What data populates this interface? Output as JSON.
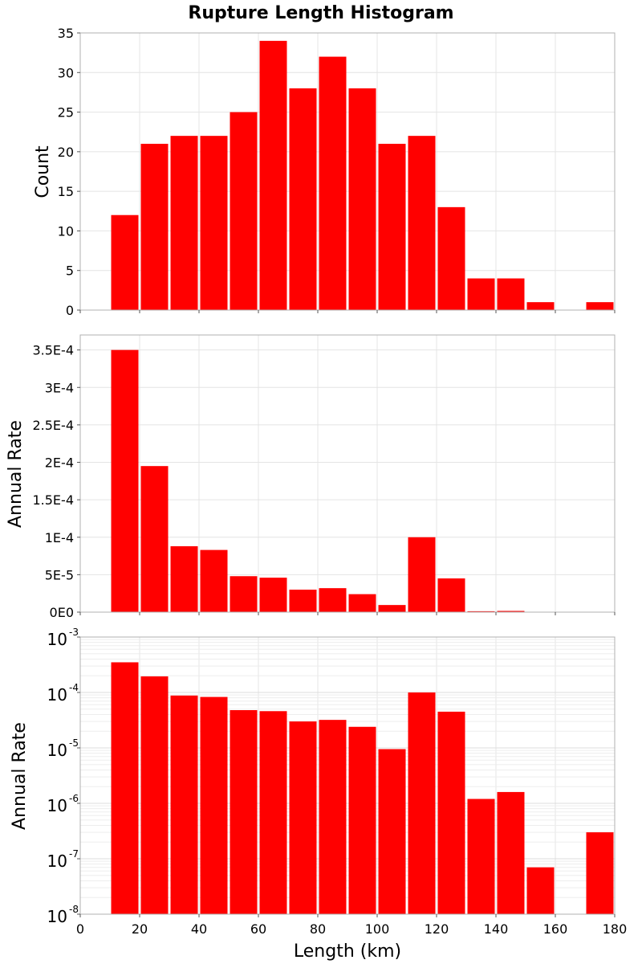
{
  "chart_data": {
    "type": "bar",
    "title": "Rupture Length Histogram",
    "xlabel": "Length (km)",
    "xlim": [
      0,
      180
    ],
    "x_ticks": [
      "0",
      "20",
      "40",
      "60",
      "80",
      "100",
      "120",
      "140",
      "160",
      "180"
    ],
    "bin_centers": [
      15,
      25,
      35,
      45,
      55,
      65,
      75,
      85,
      95,
      105,
      115,
      125,
      135,
      145,
      155,
      165,
      175
    ],
    "bar_color": "#ff0000",
    "grid": true,
    "panels": [
      {
        "ylabel": "Count",
        "scale": "linear",
        "ylim": [
          0,
          35
        ],
        "y_ticks": [
          0,
          5,
          10,
          15,
          20,
          25,
          30,
          35
        ],
        "y_tick_labels": [
          "0",
          "5",
          "10",
          "15",
          "20",
          "25",
          "30",
          "35"
        ],
        "values": [
          12,
          21,
          22,
          22,
          25,
          34,
          28,
          32,
          28,
          21,
          22,
          13,
          4,
          4,
          1,
          0,
          1
        ]
      },
      {
        "ylabel": "Annual Rate",
        "scale": "linear",
        "ylim": [
          0,
          0.00037
        ],
        "y_ticks": [
          0,
          5e-05,
          0.0001,
          0.00015,
          0.0002,
          0.00025,
          0.0003,
          0.00035
        ],
        "y_tick_labels": [
          "0E0",
          "5E-5",
          "1E-4",
          "1.5E-4",
          "2E-4",
          "2.5E-4",
          "3E-4",
          "3.5E-4"
        ],
        "values": [
          0.00035,
          0.000195,
          8.8e-05,
          8.3e-05,
          4.8e-05,
          4.6e-05,
          3e-05,
          3.2e-05,
          2.4e-05,
          9.5e-06,
          0.0001,
          4.5e-05,
          1.2e-06,
          1.6e-06,
          7e-08,
          0,
          3e-07
        ]
      },
      {
        "ylabel": "Annual Rate",
        "scale": "log",
        "ylim": [
          1e-08,
          0.001
        ],
        "y_tick_base": "10",
        "y_tick_exponents": [
          "-8",
          "-7",
          "-6",
          "-5",
          "-4",
          "-3"
        ],
        "values": [
          0.00035,
          0.000195,
          8.8e-05,
          8.3e-05,
          4.8e-05,
          4.6e-05,
          3e-05,
          3.2e-05,
          2.4e-05,
          9.5e-06,
          0.0001,
          4.5e-05,
          1.2e-06,
          1.6e-06,
          7e-08,
          0,
          3e-07
        ]
      }
    ]
  }
}
